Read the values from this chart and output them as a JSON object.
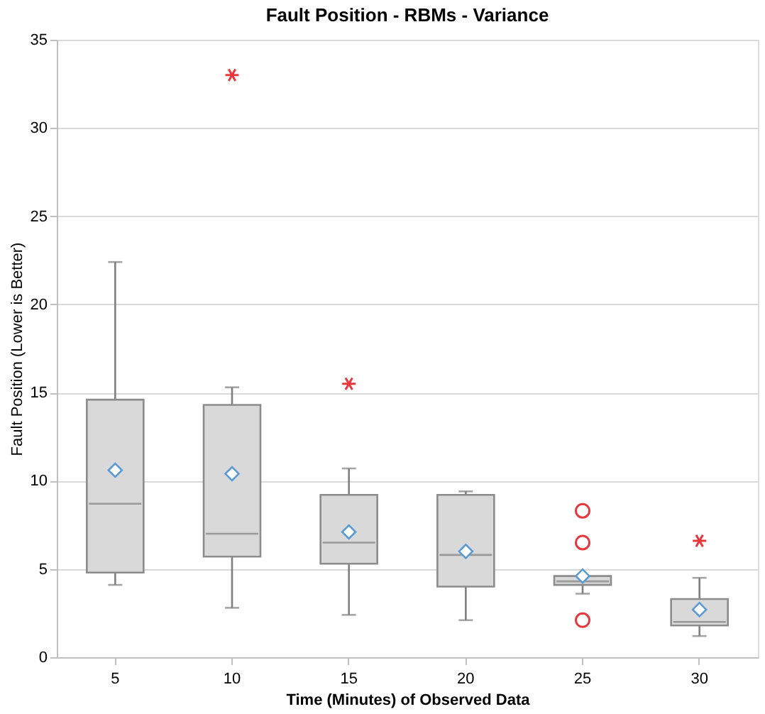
{
  "chart_data": {
    "type": "box",
    "title": "Fault Position - RBMs - Variance",
    "xlabel": "Time (Minutes) of Observed Data",
    "ylabel": "Fault Position (Lower is Better)",
    "categories": [
      "5",
      "10",
      "15",
      "20",
      "25",
      "30"
    ],
    "ylim": [
      0,
      35
    ],
    "yticks": [
      0,
      5,
      10,
      15,
      20,
      25,
      30,
      35
    ],
    "grid": "y",
    "series": [
      {
        "type": "box",
        "color": "#d9d9d9",
        "boxes": [
          {
            "low": 4.1,
            "q1": 4.8,
            "median": 8.7,
            "q3": 14.6,
            "high": 22.4,
            "mean": 10.6
          },
          {
            "low": 2.8,
            "q1": 5.7,
            "median": 7.0,
            "q3": 14.3,
            "high": 15.3,
            "mean": 10.4
          },
          {
            "low": 2.4,
            "q1": 5.3,
            "median": 6.5,
            "q3": 9.2,
            "high": 10.7,
            "mean": 7.1
          },
          {
            "low": 2.1,
            "q1": 4.0,
            "median": 5.8,
            "q3": 9.2,
            "high": 9.4,
            "mean": 6.0
          },
          {
            "low": 3.6,
            "q1": 4.1,
            "median": 4.3,
            "q3": 4.6,
            "high": 4.6,
            "mean": 4.6
          },
          {
            "low": 1.2,
            "q1": 1.8,
            "median": 2.0,
            "q3": 3.3,
            "high": 4.5,
            "mean": 2.7
          }
        ]
      },
      {
        "type": "scatter",
        "color": "#e8383d",
        "marker": "cross",
        "x": [
          "10",
          "15",
          "30"
        ],
        "values": [
          33.0,
          15.5,
          6.6
        ]
      },
      {
        "type": "scatter",
        "color": "#e8383d",
        "marker": "circle",
        "x": [
          "25",
          "25",
          "25"
        ],
        "values": [
          8.3,
          6.5,
          2.1
        ]
      }
    ]
  }
}
